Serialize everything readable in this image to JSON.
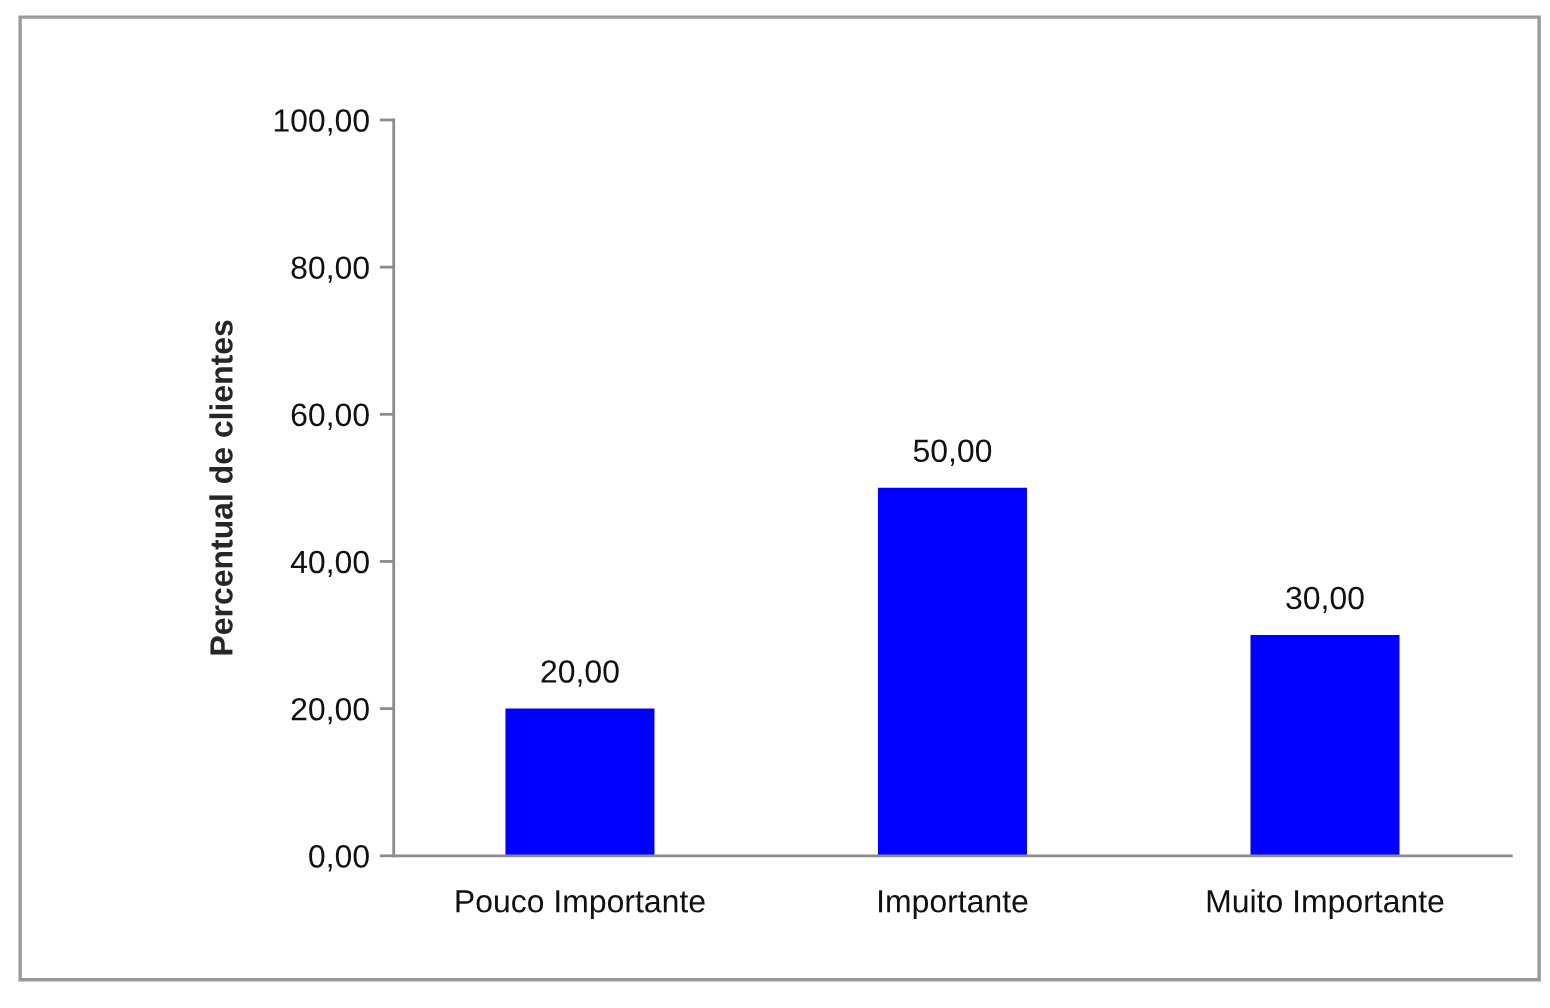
{
  "chart_data": {
    "type": "bar",
    "ylabel": "Percentual de clientes",
    "categories": [
      "Pouco Importante",
      "Importante",
      "Muito Importante"
    ],
    "values": [
      20,
      50,
      30
    ],
    "color": "#0000ff",
    "value_labels": [
      "20,00",
      "50,00",
      "30,00"
    ],
    "ylim": [
      0,
      100
    ],
    "yticks": [
      {
        "value": 0,
        "label": "0,00"
      },
      {
        "value": 20,
        "label": "20,00"
      },
      {
        "value": 40,
        "label": "40,00"
      },
      {
        "value": 60,
        "label": "60,00"
      },
      {
        "value": 80,
        "label": "80,00"
      },
      {
        "value": 100,
        "label": "100,00"
      }
    ],
    "grid": false,
    "legend": false
  }
}
